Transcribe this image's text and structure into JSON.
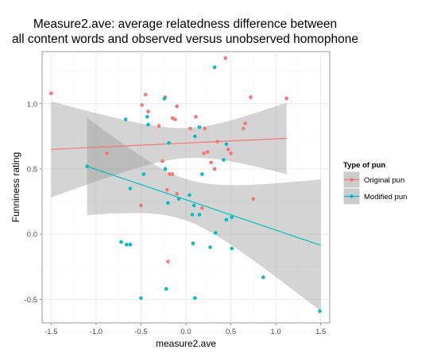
{
  "chart_data": {
    "type": "scatter",
    "title": [
      "Measure2.ave: average relatedness difference between",
      "all content words and observed versus unobserved homophone"
    ],
    "xlabel": "measure2.ave",
    "ylabel": "Funniness rating",
    "xlim": [
      -1.6,
      1.6
    ],
    "ylim": [
      -0.68,
      1.4
    ],
    "x_ticks": [
      -1.5,
      -1.0,
      -0.5,
      0.0,
      0.5,
      1.0,
      1.5
    ],
    "x_tick_labels": [
      "-1.5",
      "-1.0",
      "-0.5",
      "0.0",
      "0.5",
      "1.0",
      "1.5"
    ],
    "y_ticks": [
      -0.5,
      0.0,
      0.5,
      1.0
    ],
    "y_tick_labels": [
      "-0.5",
      "0.0",
      "0.5",
      "1.0"
    ],
    "grid": true,
    "legend": {
      "title": "Type of pun",
      "placement": "right",
      "items": [
        {
          "label": "Original pun",
          "color": "#f8766d"
        },
        {
          "label": "Modified pun",
          "color": "#00bfc4"
        }
      ]
    },
    "series": [
      {
        "name": "Original pun",
        "color": "#f8766d",
        "points": [
          [
            -1.5,
            1.08
          ],
          [
            -0.88,
            0.62
          ],
          [
            -0.5,
            0.22
          ],
          [
            -0.49,
            0.99
          ],
          [
            -0.45,
            1.07
          ],
          [
            -0.42,
            0.94
          ],
          [
            -0.3,
            0.83
          ],
          [
            -0.23,
            1.05
          ],
          [
            -0.26,
            0.56
          ],
          [
            -0.21,
            0.34
          ],
          [
            -0.2,
            -0.21
          ],
          [
            -0.15,
            0.89
          ],
          [
            -0.12,
            0.88
          ],
          [
            -0.1,
            0.98
          ],
          [
            -0.18,
            0.46
          ],
          [
            -0.15,
            0.46
          ],
          [
            -0.1,
            0.31
          ],
          [
            0.05,
            0.81
          ],
          [
            0.11,
            0.9
          ],
          [
            0.18,
            0.2
          ],
          [
            0.21,
            0.81
          ],
          [
            0.2,
            0.62
          ],
          [
            0.24,
            0.63
          ],
          [
            0.28,
            0.55
          ],
          [
            0.32,
            0.5
          ],
          [
            0.35,
            0.71
          ],
          [
            0.44,
            1.35
          ],
          [
            0.47,
            0.65
          ],
          [
            0.5,
            0.62
          ],
          [
            0.64,
            0.81
          ],
          [
            0.66,
            0.85
          ],
          [
            0.72,
            1.05
          ],
          [
            0.75,
            0.27
          ],
          [
            1.12,
            1.04
          ]
        ],
        "fit": {
          "x": [
            -1.5,
            1.12
          ],
          "y": [
            0.65,
            0.735
          ]
        }
      },
      {
        "name": "Modified pun",
        "color": "#00bfc4",
        "points": [
          [
            -1.1,
            0.52
          ],
          [
            -0.67,
            0.88
          ],
          [
            -0.62,
            0.35
          ],
          [
            -0.47,
            0.46
          ],
          [
            -0.72,
            -0.06
          ],
          [
            -0.66,
            -0.08
          ],
          [
            -0.62,
            -0.08
          ],
          [
            -0.5,
            -0.49
          ],
          [
            -0.42,
            0.84
          ],
          [
            -0.43,
            0.9
          ],
          [
            -0.24,
            1.04
          ],
          [
            -0.23,
            0.5
          ],
          [
            -0.19,
            0.7
          ],
          [
            -0.2,
            0.24
          ],
          [
            -0.22,
            -0.42
          ],
          [
            -0.08,
            0.27
          ],
          [
            0.04,
            0.3
          ],
          [
            0.1,
            0.75
          ],
          [
            0.15,
            0.82
          ],
          [
            0.09,
            0.22
          ],
          [
            0.07,
            0.15
          ],
          [
            0.08,
            -0.07
          ],
          [
            0.1,
            -0.49
          ],
          [
            0.15,
            0.15
          ],
          [
            0.18,
            0.46
          ],
          [
            0.27,
            -0.1
          ],
          [
            0.32,
            1.28
          ],
          [
            0.33,
            0.01
          ],
          [
            0.42,
            0.57
          ],
          [
            0.45,
            0.11
          ],
          [
            0.45,
            0.69
          ],
          [
            0.51,
            0.13
          ],
          [
            0.51,
            -0.11
          ],
          [
            0.86,
            -0.33
          ],
          [
            1.49,
            -0.59
          ]
        ],
        "fit": {
          "x": [
            -1.1,
            1.5
          ],
          "y": [
            0.52,
            -0.085
          ]
        }
      }
    ]
  }
}
